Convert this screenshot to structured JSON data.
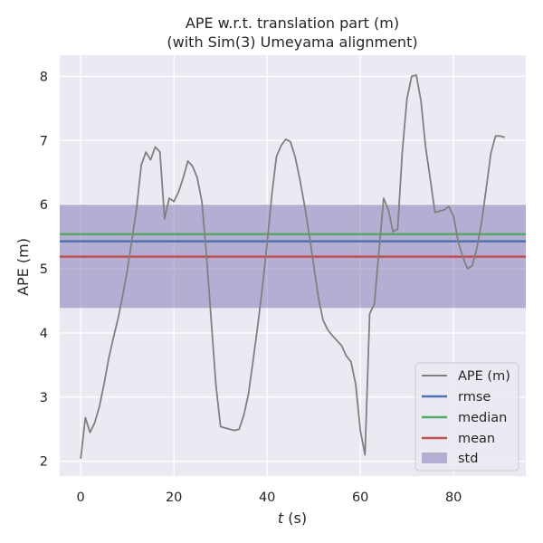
{
  "chart_data": {
    "type": "line",
    "title": "APE w.r.t. translation part (m)",
    "subtitle": "(with Sim(3) Umeyama alignment)",
    "xlabel_italic": "t",
    "xlabel_rest": " (s)",
    "ylabel": "APE (m)",
    "xlim": [
      -4.5,
      95.5
    ],
    "ylim": [
      1.77,
      8.33
    ],
    "xticks": [
      0,
      20,
      40,
      60,
      80
    ],
    "yticks": [
      2,
      3,
      4,
      5,
      6,
      7,
      8
    ],
    "grid": true,
    "legend_position": "lower-right",
    "series": [
      {
        "name": "APE (m)",
        "color": "#808080",
        "x": [
          0,
          1,
          2,
          3,
          4,
          5,
          6,
          7,
          8,
          9,
          10,
          11,
          12,
          13,
          14,
          15,
          16,
          17,
          18,
          19,
          20,
          21,
          22,
          23,
          24,
          25,
          26,
          27,
          28,
          29,
          30,
          31,
          32,
          33,
          34,
          35,
          36,
          37,
          38,
          39,
          40,
          41,
          42,
          43,
          44,
          45,
          46,
          47,
          48,
          49,
          50,
          51,
          52,
          53,
          54,
          55,
          56,
          57,
          58,
          59,
          60,
          61,
          62,
          63,
          64,
          65,
          66,
          67,
          68,
          69,
          70,
          71,
          72,
          73,
          74,
          75,
          76,
          77,
          78,
          79,
          80,
          81,
          82,
          83,
          84,
          85,
          86,
          87,
          88,
          89,
          90,
          91
        ],
        "y": [
          2.04,
          2.68,
          2.45,
          2.6,
          2.85,
          3.2,
          3.6,
          3.92,
          4.22,
          4.58,
          4.98,
          5.45,
          5.95,
          6.62,
          6.82,
          6.7,
          6.9,
          6.82,
          5.78,
          6.1,
          6.05,
          6.2,
          6.42,
          6.68,
          6.6,
          6.42,
          6.05,
          5.2,
          4.2,
          3.2,
          2.54,
          2.52,
          2.5,
          2.48,
          2.5,
          2.72,
          3.05,
          3.58,
          4.12,
          4.72,
          5.4,
          6.15,
          6.75,
          6.92,
          7.02,
          6.98,
          6.75,
          6.4,
          6.0,
          5.55,
          5.05,
          4.55,
          4.2,
          4.05,
          3.96,
          3.88,
          3.8,
          3.64,
          3.55,
          3.2,
          2.48,
          2.1,
          4.3,
          4.45,
          5.28,
          6.1,
          5.92,
          5.58,
          5.62,
          6.82,
          7.65,
          8.0,
          8.02,
          7.62,
          6.9,
          6.4,
          5.88,
          5.9,
          5.92,
          5.97,
          5.82,
          5.42,
          5.18,
          5.0,
          5.05,
          5.32,
          5.72,
          6.25,
          6.8,
          7.07,
          7.07,
          7.05
        ]
      }
    ],
    "stats": {
      "rmse": {
        "name": "rmse",
        "value": 5.43,
        "color": "#4c72b0"
      },
      "median": {
        "name": "median",
        "value": 5.54,
        "color": "#55a868"
      },
      "mean": {
        "name": "mean",
        "value": 5.19,
        "color": "#c44e52"
      },
      "std": {
        "name": "std",
        "lower": 4.39,
        "upper": 6.0,
        "color": "#8172b2"
      }
    },
    "plot_background": "#eaeaf2"
  }
}
